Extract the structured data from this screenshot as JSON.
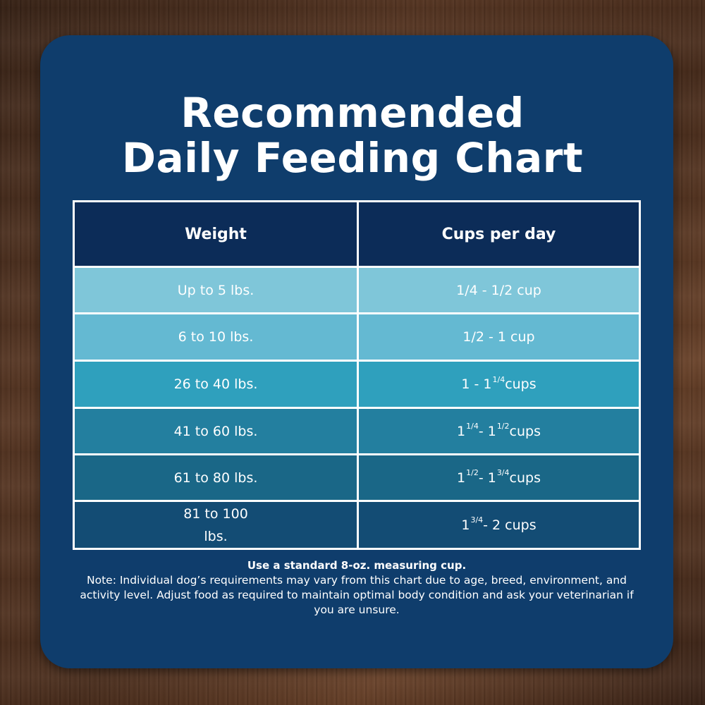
{
  "title": {
    "line1": "Recommended",
    "line2": "Daily Feeding Chart"
  },
  "table": {
    "headers": {
      "weight": "Weight",
      "cups": "Cups per day"
    },
    "rows": [
      {
        "weight": "Up to 5 lbs.",
        "cups": "1/4 - 1/2 cup",
        "bg": "#7fc6d9"
      },
      {
        "weight": "6 to 10 lbs.",
        "cups": "1/2 - 1 cup",
        "bg": "#64b9d2"
      },
      {
        "weight": "26 to 40 lbs.",
        "cups_a": "1 - 1",
        "cups_frac": "1/4",
        "cups_b": " cups",
        "bg": "#2fa0bd"
      },
      {
        "weight": "41 to 60 lbs.",
        "cups_a": "1",
        "cups_frac": "1/4",
        "cups_mid": " - 1",
        "cups_frac2": "1/2",
        "cups_b": " cups",
        "bg": "#237f9f"
      },
      {
        "weight": "61 to 80 lbs.",
        "cups_a": "1",
        "cups_frac": "1/2",
        "cups_mid": " - 1",
        "cups_frac2": "3/4",
        "cups_b": " cups",
        "bg": "#1a6787"
      },
      {
        "weight_l1": "81 to 100",
        "weight_l2": "lbs.",
        "cups_a": "1",
        "cups_frac": "3/4",
        "cups_b": " - 2 cups",
        "bg": "#134c74"
      }
    ]
  },
  "notes": {
    "bold": "Use a standard 8-oz. measuring cup.",
    "text": "Note: Individual dog’s requirements may vary from this chart due to age, breed, environment, and activity level. Adjust food as required to maintain optimal body condition and ask your veterinarian if you are unsure."
  },
  "colors": {
    "card": "#0f3d6c",
    "header": "#0c2c58",
    "grid": "#ffffff"
  }
}
